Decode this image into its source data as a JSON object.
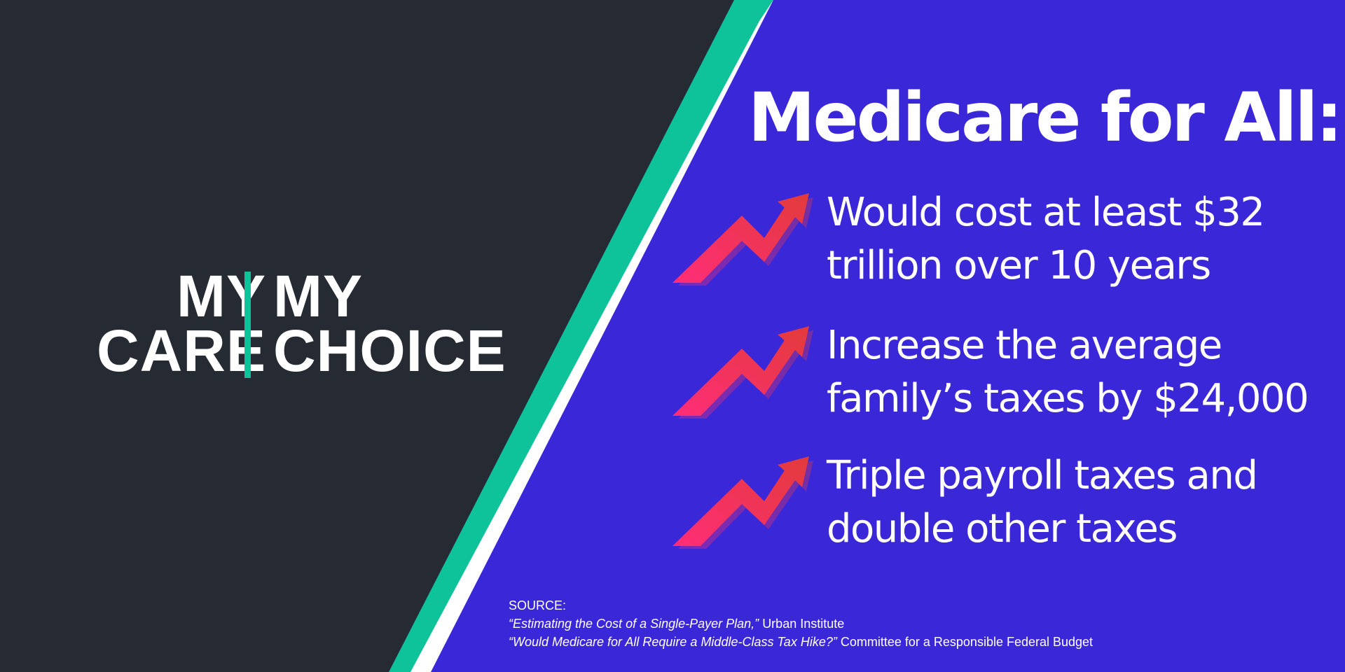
{
  "logo": {
    "left_line1": "MY",
    "left_line2": "CARE",
    "right_line1": "MY",
    "right_line2": "CHOICE"
  },
  "headline": "Medicare for All:",
  "bullets": [
    {
      "icon": "trending-up-arrow-icon",
      "line1": "Would cost at least $32",
      "line2": "trillion over 10 years"
    },
    {
      "icon": "trending-up-arrow-icon",
      "line1": "Increase the average",
      "line2": "family’s taxes by $24,000"
    },
    {
      "icon": "trending-up-arrow-icon",
      "line1": "Triple payroll taxes and",
      "line2": "double other taxes"
    }
  ],
  "source": {
    "label": "SOURCE:",
    "items": [
      {
        "title": "“Estimating the Cost of a Single-Payer Plan,”",
        "publisher": "Urban Institute"
      },
      {
        "title": "“Would Medicare for All Require a Middle-Class Tax Hike?”",
        "publisher": "Committee for a Responsible Federal Budget"
      }
    ]
  },
  "colors": {
    "dark_panel": "#262a33",
    "accent_teal": "#0ec39a",
    "purple_panel": "#3a27d8",
    "white_stripe": "#ffffff",
    "arrow_gradient_start": "#ff2d78",
    "arrow_gradient_end": "#e23b3b"
  }
}
